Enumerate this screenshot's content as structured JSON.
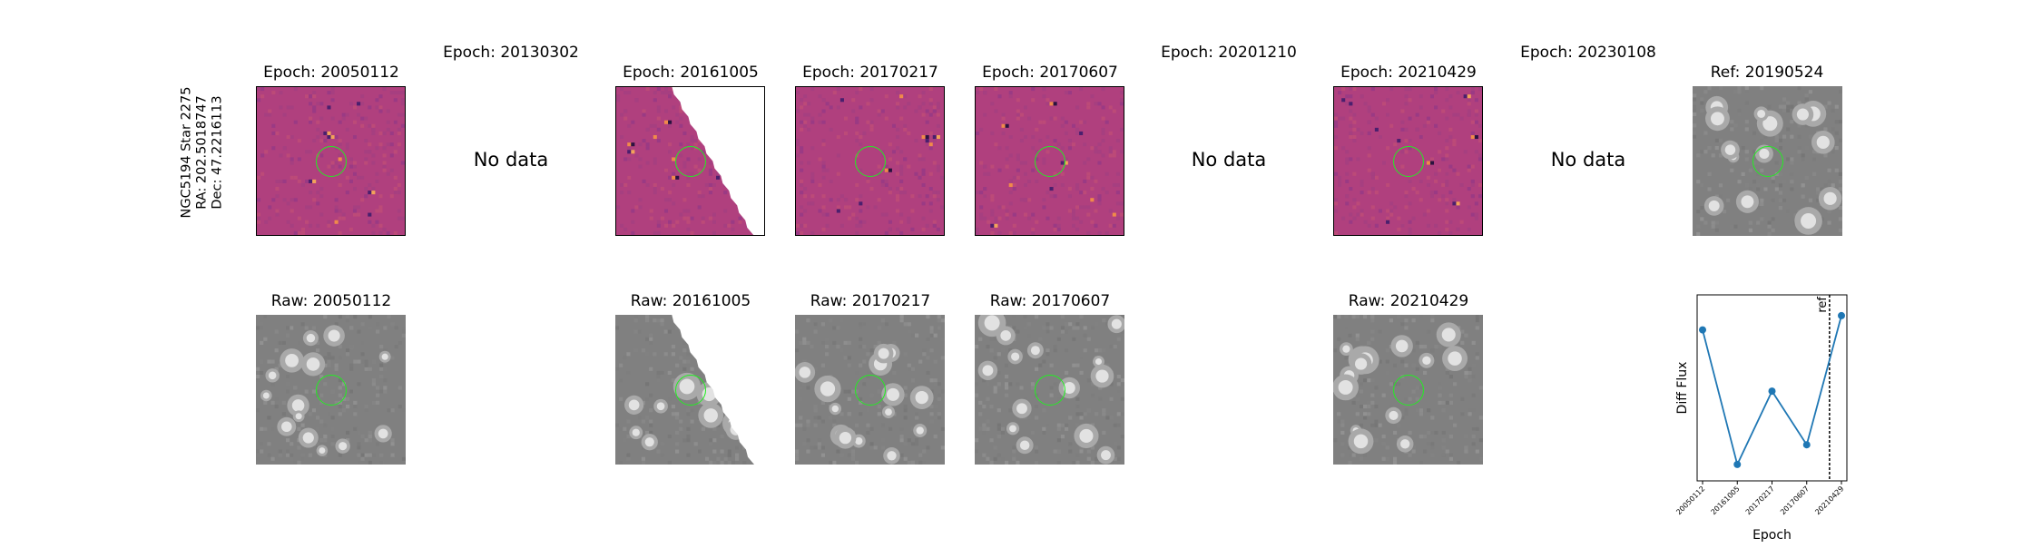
{
  "target": {
    "name": "NGC5194 Star 2275",
    "ra": "RA: 202.5018747",
    "dec": "Dec: 47.2216113"
  },
  "diff_row": [
    {
      "title": "Epoch: 20050112",
      "has_data": true
    },
    {
      "title": "Epoch: 20130302",
      "has_data": false,
      "message": "No data"
    },
    {
      "title": "Epoch: 20161005",
      "has_data": true
    },
    {
      "title": "Epoch: 20170217",
      "has_data": true
    },
    {
      "title": "Epoch: 20170607",
      "has_data": true
    },
    {
      "title": "Epoch: 20201210",
      "has_data": false,
      "message": "No data"
    },
    {
      "title": "Epoch: 20210429",
      "has_data": true
    },
    {
      "title": "Epoch: 20230108",
      "has_data": false,
      "message": "No data"
    },
    {
      "title": "Ref: 20190524",
      "has_data": true
    }
  ],
  "raw_row": [
    {
      "title": "Raw: 20050112"
    },
    {
      "title": "Raw: 20161005"
    },
    {
      "title": "Raw: 20170217"
    },
    {
      "title": "Raw: 20170607"
    },
    {
      "title": "Raw: 20210429"
    }
  ],
  "light_curve": {
    "xlabel": "Epoch",
    "ylabel": "Diff Flux",
    "ref_label": "ref",
    "colors": {
      "line": "#1f77b4",
      "circle": "#22ee22"
    }
  },
  "chart_data": {
    "type": "line",
    "xlabel": "Epoch",
    "ylabel": "Diff Flux",
    "categories": [
      "20050112",
      "20161005",
      "20170217",
      "20170607",
      "20210429"
    ],
    "values": [
      0.83,
      -0.4,
      0.27,
      -0.22,
      0.96
    ],
    "ylim": [
      -0.55,
      1.15
    ],
    "yticks_shown": false,
    "ref_marker": {
      "label": "ref",
      "position_between": [
        "20170607",
        "20210429"
      ]
    },
    "grid": false
  }
}
